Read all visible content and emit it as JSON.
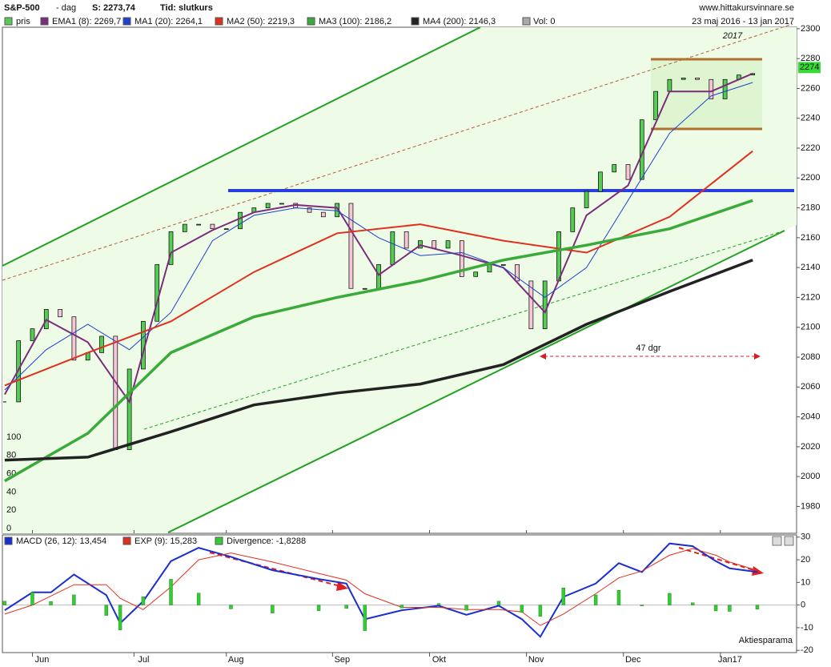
{
  "header": {
    "ticker": "S&P-500",
    "period": "- dag",
    "last": "S: 2273,74",
    "time": "Tid: slutkurs",
    "site": "www.hittakursvinnare.se",
    "range": "23 maj 2016 - 13 jan 2017",
    "volume": "Vol: 0"
  },
  "chart_data": [
    {
      "type": "candlestick",
      "candle_name": "pris",
      "candle_color": "#55cc55",
      "down_color": "#f4c6d6",
      "xlim": [
        -0.5,
        171.5
      ],
      "ylim": [
        1962,
        2301
      ],
      "yticks": [
        1980,
        2000,
        2020,
        2040,
        2060,
        2080,
        2100,
        2120,
        2140,
        2160,
        2180,
        2200,
        2220,
        2240,
        2260,
        2280,
        2300
      ],
      "y3lim": [
        0,
        100
      ],
      "y3ticks": [
        0,
        20,
        40,
        60,
        80,
        100
      ],
      "current_price": 2274,
      "x": [
        0,
        3,
        6,
        9,
        12,
        15,
        18,
        21,
        24,
        27,
        30,
        33,
        36,
        39,
        42,
        45,
        48,
        51,
        54,
        57,
        60,
        63,
        66,
        69,
        72,
        75,
        78,
        81,
        84,
        87,
        90,
        93,
        96,
        99,
        102,
        105,
        108,
        111,
        114,
        117,
        120,
        123,
        126,
        129,
        132,
        135,
        138,
        141,
        144,
        147,
        150,
        153,
        156,
        159,
        162
      ],
      "close": [
        2050,
        2091,
        2099,
        2112,
        2107,
        2078,
        2083,
        2094,
        2018,
        2072,
        2104,
        2142,
        2164,
        2169,
        2169,
        2166,
        2166,
        2177,
        2180,
        2183,
        2183,
        2180,
        2177,
        2174,
        2183,
        2126,
        2126,
        2142,
        2164,
        2153,
        2158,
        2153,
        2158,
        2134,
        2137,
        2142,
        2142,
        2131,
        2099,
        2131,
        2164,
        2180,
        2191,
        2204,
        2209,
        2199,
        2239,
        2258,
        2266,
        2267,
        2266,
        2253,
        2266,
        2269,
        2270
      ],
      "annotations": [
        "47 dgr",
        "2017"
      ],
      "series": [
        {
          "name": "EMA1 (8): 2269,7",
          "color": "#7b2d7b",
          "width": 2,
          "x": [
            0,
            9,
            18,
            27,
            36,
            45,
            54,
            63,
            72,
            81,
            90,
            99,
            108,
            117,
            126,
            135,
            144,
            153,
            162
          ],
          "values": [
            2055,
            2105,
            2090,
            2050,
            2150,
            2165,
            2177,
            2182,
            2180,
            2135,
            2155,
            2148,
            2140,
            2110,
            2175,
            2195,
            2258,
            2258,
            2270
          ]
        },
        {
          "name": "MA1 (20): 2264,1",
          "color": "#2040d0",
          "width": 1,
          "x": [
            0,
            9,
            18,
            27,
            36,
            45,
            54,
            63,
            72,
            81,
            90,
            99,
            108,
            117,
            126,
            135,
            144,
            153,
            162
          ],
          "values": [
            2058,
            2085,
            2102,
            2085,
            2110,
            2158,
            2175,
            2180,
            2178,
            2160,
            2148,
            2150,
            2140,
            2120,
            2140,
            2185,
            2230,
            2255,
            2264
          ]
        },
        {
          "name": "MA2 (50): 2219,3",
          "color": "#e03020",
          "width": 2,
          "x": [
            0,
            18,
            36,
            54,
            72,
            90,
            108,
            126,
            144,
            162
          ],
          "values": [
            2061,
            2083,
            2104,
            2137,
            2163,
            2169,
            2158,
            2150,
            2174,
            2218
          ]
        },
        {
          "name": "MA3 (100): 2186,2",
          "color": "#3aaa3a",
          "width": 3.5,
          "x": [
            0,
            18,
            36,
            54,
            72,
            90,
            108,
            126,
            144,
            162
          ],
          "values": [
            1997,
            2029,
            2083,
            2107,
            2120,
            2131,
            2145,
            2155,
            2166,
            2185
          ]
        },
        {
          "name": "MA4 (200): 2146,3",
          "color": "#222222",
          "width": 3.5,
          "x": [
            0,
            18,
            36,
            54,
            72,
            90,
            108,
            126,
            144,
            162
          ],
          "values": [
            2011,
            2013,
            2030,
            2048,
            2056,
            2062,
            2075,
            2102,
            2124,
            2145
          ]
        }
      ]
    },
    {
      "type": "macd",
      "xlim": [
        -0.5,
        171.5
      ],
      "ylim": [
        -21,
        31
      ],
      "yticks": [
        -20,
        -10,
        0,
        10,
        20,
        30
      ],
      "xticks": [
        {
          "value": 6,
          "label": "Jun"
        },
        {
          "value": 28,
          "label": "Jul"
        },
        {
          "value": 48,
          "label": "Aug"
        },
        {
          "value": 71,
          "label": "Sep"
        },
        {
          "value": 92,
          "label": "Okt"
        },
        {
          "value": 113,
          "label": "Nov"
        },
        {
          "value": 134,
          "label": "Dec"
        },
        {
          "value": 155,
          "label": "Jan17"
        }
      ],
      "credit": "Aktiesparama",
      "x": [
        0,
        6,
        10,
        15,
        22,
        25,
        30,
        36,
        42,
        49,
        58,
        68,
        74,
        78,
        86,
        94,
        100,
        107,
        112,
        116,
        121,
        128,
        133,
        138,
        144,
        149,
        154,
        157,
        163
      ],
      "series": [
        {
          "name": "MACD (26, 12): 13,454",
          "color": "#1a2fd0",
          "style": "line",
          "values": [
            -2.3,
            5.6,
            5.6,
            13.5,
            4.4,
            -8,
            1.7,
            19.4,
            25.3,
            21.3,
            15.4,
            11.5,
            9.5,
            -6.3,
            -2.3,
            -0.3,
            -4.3,
            -0.3,
            -6.2,
            -14,
            3.6,
            9.5,
            18.5,
            14.6,
            27.2,
            26,
            19.4,
            16.2,
            14.6
          ]
        },
        {
          "name": "EXP (9): 15,283",
          "color": "#e03020",
          "style": "line",
          "values": [
            -4,
            0,
            4,
            9,
            9,
            3,
            -2,
            8,
            20,
            23,
            19,
            14,
            11,
            5,
            -1,
            -1,
            -2,
            -2,
            -3,
            -9,
            -4,
            5,
            12,
            15,
            22,
            25,
            22,
            19,
            15.3
          ]
        },
        {
          "name": "Divergence: -1,8288",
          "color": "#33cc33",
          "style": "bar",
          "values": [
            1.7,
            5.6,
            1.6,
            4.5,
            -4.6,
            -11,
            3.7,
            11.4,
            5.3,
            -1.7,
            -3.6,
            -2.5,
            -1.5,
            -11.3,
            -1.3,
            0.7,
            -2.3,
            1.7,
            -3.2,
            -5,
            7.6,
            4.5,
            6.5,
            -0.4,
            5.2,
            1,
            -2.6,
            -2.8,
            -1.8
          ]
        }
      ]
    }
  ]
}
